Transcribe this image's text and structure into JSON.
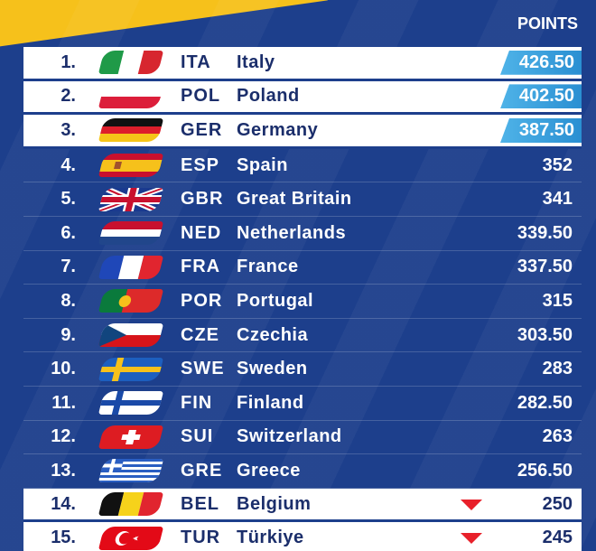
{
  "header": {
    "points_label": "POINTS"
  },
  "rows": [
    {
      "rank": "1.",
      "code": "ITA",
      "name": "Italy",
      "points": "426.50"
    },
    {
      "rank": "2.",
      "code": "POL",
      "name": "Poland",
      "points": "402.50"
    },
    {
      "rank": "3.",
      "code": "GER",
      "name": "Germany",
      "points": "387.50"
    },
    {
      "rank": "4.",
      "code": "ESP",
      "name": "Spain",
      "points": "352"
    },
    {
      "rank": "5.",
      "code": "GBR",
      "name": "Great Britain",
      "points": "341"
    },
    {
      "rank": "6.",
      "code": "NED",
      "name": "Netherlands",
      "points": "339.50"
    },
    {
      "rank": "7.",
      "code": "FRA",
      "name": "France",
      "points": "337.50"
    },
    {
      "rank": "8.",
      "code": "POR",
      "name": "Portugal",
      "points": "315"
    },
    {
      "rank": "9.",
      "code": "CZE",
      "name": "Czechia",
      "points": "303.50"
    },
    {
      "rank": "10.",
      "code": "SWE",
      "name": "Sweden",
      "points": "283"
    },
    {
      "rank": "11.",
      "code": "FIN",
      "name": "Finland",
      "points": "282.50"
    },
    {
      "rank": "12.",
      "code": "SUI",
      "name": "Switzerland",
      "points": "263"
    },
    {
      "rank": "13.",
      "code": "GRE",
      "name": "Greece",
      "points": "256.50"
    },
    {
      "rank": "14.",
      "code": "BEL",
      "name": "Belgium",
      "points": "250"
    },
    {
      "rank": "15.",
      "code": "TUR",
      "name": "Türkiye",
      "points": "245"
    }
  ],
  "colors": {
    "background": "#1d3f8c",
    "highlight": "#4fb3e8",
    "relegation_arrow": "#e8202a",
    "accent_stripe": "#f6c11b"
  }
}
